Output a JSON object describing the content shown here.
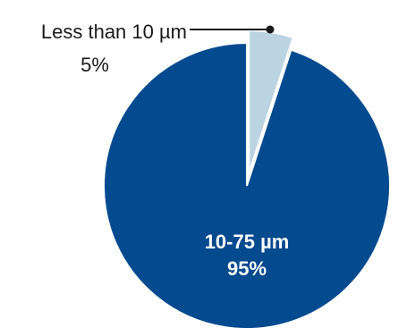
{
  "chart_data": {
    "type": "pie",
    "slices": [
      {
        "label": "10-75 µm",
        "value": 95,
        "value_label": "95%",
        "color": "#044a8f"
      },
      {
        "label": "Less than 10 µm",
        "value": 5,
        "value_label": "5%",
        "color": "#bcd3e2"
      }
    ],
    "exploded_slice": "Less than 10 µm",
    "label_text_color_inside": "#ffffff",
    "label_text_color_outside": "#1a1a1a",
    "leader_color": "#1a1a1a"
  }
}
